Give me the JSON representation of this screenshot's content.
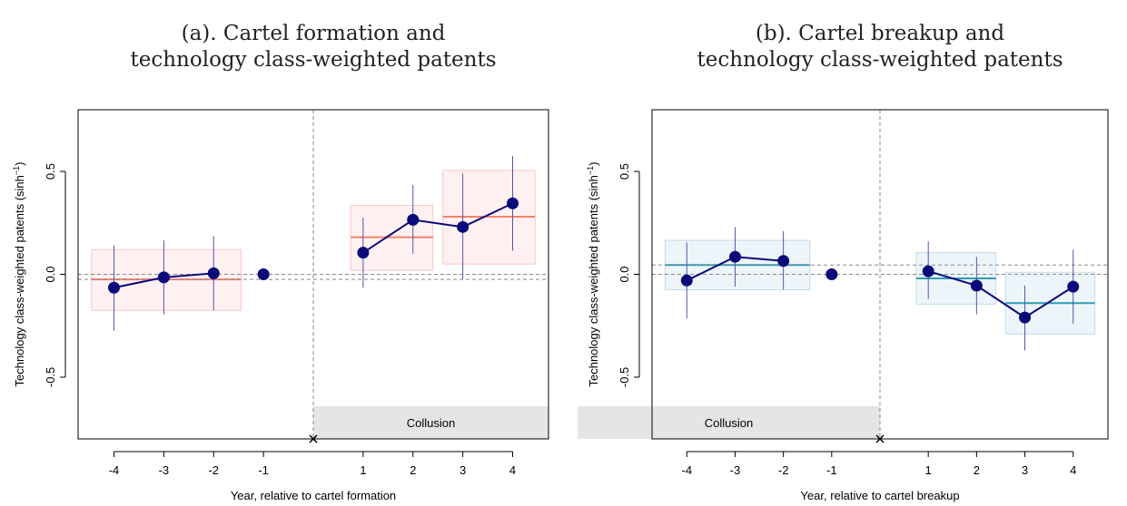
{
  "chart_data": [
    {
      "type": "scatter",
      "title_lines": [
        "(a). Cartel formation and",
        "technology class-weighted patents"
      ],
      "xlabel": "Year, relative to cartel formation",
      "ylabel": "Technology class-weighted patents (sinh",
      "ylabel_sup": "−1",
      "ylabel_close": ")",
      "xlim": [
        -4.72,
        4.72
      ],
      "ylim": [
        -0.8,
        0.8
      ],
      "x_ticks": [
        -4,
        -3,
        -2,
        -1,
        1,
        2,
        3,
        4
      ],
      "x_tick_labels": [
        "-4",
        "-3",
        "-2",
        "-1",
        "1",
        "2",
        "3",
        "4"
      ],
      "y_ticks": [
        -0.5,
        0.0,
        0.5
      ],
      "y_tick_labels": [
        "-0.5",
        "0.0",
        "0.5"
      ],
      "event_x": 0,
      "collusion_label": "Collusion",
      "collusion_side": "right",
      "accent_color": "#F4826C",
      "box_fill": "#FFF1F1",
      "box_stroke": "#F7C5C5",
      "point_color": "#0A0A7A",
      "ci_color": "#5555AA",
      "points": [
        {
          "x": -4,
          "y": -0.065,
          "lo": -0.275,
          "hi": 0.14
        },
        {
          "x": -3,
          "y": -0.015,
          "lo": -0.195,
          "hi": 0.165
        },
        {
          "x": -2,
          "y": 0.005,
          "lo": -0.175,
          "hi": 0.185
        },
        {
          "x": -1,
          "y": 0.0,
          "lo": null,
          "hi": null
        },
        {
          "x": 1,
          "y": 0.105,
          "lo": -0.065,
          "hi": 0.275
        },
        {
          "x": 2,
          "y": 0.265,
          "lo": 0.1,
          "hi": 0.435
        },
        {
          "x": 3,
          "y": 0.23,
          "lo": -0.025,
          "hi": 0.49
        },
        {
          "x": 4,
          "y": 0.345,
          "lo": 0.115,
          "hi": 0.575
        }
      ],
      "line_segments": [
        [
          -4,
          -3,
          -2
        ],
        [
          1,
          2,
          3,
          4
        ]
      ],
      "reference_lines": [
        0.0,
        -0.025
      ],
      "period_means": [
        {
          "x0": -4.45,
          "x1": -1.45,
          "mean": -0.025,
          "lo": -0.175,
          "hi": 0.12
        },
        {
          "x0": 0.75,
          "x1": 2.4,
          "mean": 0.18,
          "lo": 0.02,
          "hi": 0.335
        },
        {
          "x0": 2.6,
          "x1": 4.45,
          "mean": 0.28,
          "lo": 0.05,
          "hi": 0.505
        }
      ]
    },
    {
      "type": "scatter",
      "title_lines": [
        "(b). Cartel breakup and",
        "technology class-weighted patents"
      ],
      "xlabel": "Year, relative to cartel breakup",
      "ylabel": "Technology class-weighted patents (sinh",
      "ylabel_sup": "−1",
      "ylabel_close": ")",
      "xlim": [
        -4.72,
        4.72
      ],
      "ylim": [
        -0.8,
        0.8
      ],
      "x_ticks": [
        -4,
        -3,
        -2,
        -1,
        1,
        2,
        3,
        4
      ],
      "x_tick_labels": [
        "-4",
        "-3",
        "-2",
        "-1",
        "1",
        "2",
        "3",
        "4"
      ],
      "y_ticks": [
        -0.5,
        0.0,
        0.5
      ],
      "y_tick_labels": [
        "-0.5",
        "0.0",
        "0.5"
      ],
      "event_x": 0,
      "collusion_label": "Collusion",
      "collusion_side": "left",
      "accent_color": "#2A9DB4",
      "box_fill": "#EEF5FA",
      "box_stroke": "#BFDCEA",
      "point_color": "#0A0A7A",
      "ci_color": "#5555AA",
      "points": [
        {
          "x": -4,
          "y": -0.03,
          "lo": -0.215,
          "hi": 0.155
        },
        {
          "x": -3,
          "y": 0.085,
          "lo": -0.06,
          "hi": 0.23
        },
        {
          "x": -2,
          "y": 0.065,
          "lo": -0.075,
          "hi": 0.21
        },
        {
          "x": -1,
          "y": 0.0,
          "lo": null,
          "hi": null
        },
        {
          "x": 1,
          "y": 0.015,
          "lo": -0.12,
          "hi": 0.16
        },
        {
          "x": 2,
          "y": -0.055,
          "lo": -0.195,
          "hi": 0.085
        },
        {
          "x": 3,
          "y": -0.21,
          "lo": -0.37,
          "hi": -0.055
        },
        {
          "x": 4,
          "y": -0.06,
          "lo": -0.24,
          "hi": 0.12
        }
      ],
      "line_segments": [
        [
          -4,
          -3,
          -2
        ],
        [
          1,
          2,
          3,
          4
        ]
      ],
      "reference_lines": [
        0.0,
        0.045
      ],
      "period_means": [
        {
          "x0": -4.45,
          "x1": -1.45,
          "mean": 0.045,
          "lo": -0.075,
          "hi": 0.165
        },
        {
          "x0": 0.75,
          "x1": 2.4,
          "mean": -0.02,
          "lo": -0.145,
          "hi": 0.105
        },
        {
          "x0": 2.6,
          "x1": 4.45,
          "mean": -0.14,
          "lo": -0.29,
          "hi": 0.01
        }
      ]
    }
  ]
}
